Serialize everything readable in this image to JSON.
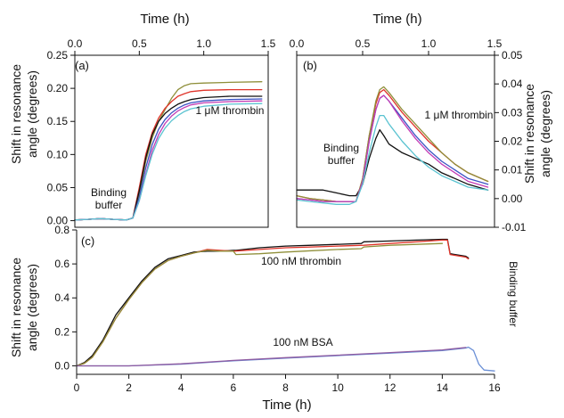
{
  "chart_data": [
    {
      "panel": "(a)",
      "type": "line",
      "xlabel": "Time (h)",
      "ylabel": "Shift in resonance angle (degrees)",
      "xlim": [
        0,
        1.5
      ],
      "ylim": [
        -0.01,
        0.25
      ],
      "xticks": [
        "0.0",
        "0.5",
        "1.0",
        "1.5"
      ],
      "yticks": [
        "0.00",
        "0.05",
        "0.10",
        "0.15",
        "0.20",
        "0.25"
      ],
      "x_axis_position": "top",
      "y_axis_position": "left",
      "grid": false,
      "annotations": [
        {
          "text": "Binding buffer",
          "x": 0.14,
          "y": 0.018
        },
        {
          "text": "1 μM thrombin",
          "x": 1.08,
          "y": 0.138
        }
      ],
      "series": [
        {
          "color": "#8f8f3a",
          "x": [
            0,
            0.1,
            0.2,
            0.3,
            0.4,
            0.45,
            0.5,
            0.55,
            0.6,
            0.65,
            0.7,
            0.75,
            0.8,
            0.85,
            0.9,
            1.0,
            1.2,
            1.45
          ],
          "y": [
            0.001,
            0.002,
            0.003,
            0.002,
            0.001,
            0.004,
            0.04,
            0.09,
            0.125,
            0.15,
            0.168,
            0.185,
            0.198,
            0.204,
            0.207,
            0.208,
            0.209,
            0.21
          ]
        },
        {
          "color": "#e0342a",
          "x": [
            0,
            0.1,
            0.2,
            0.3,
            0.4,
            0.45,
            0.5,
            0.55,
            0.6,
            0.65,
            0.7,
            0.75,
            0.8,
            0.85,
            0.9,
            1.0,
            1.2,
            1.45
          ],
          "y": [
            0.001,
            0.002,
            0.003,
            0.002,
            0.001,
            0.004,
            0.05,
            0.1,
            0.133,
            0.155,
            0.17,
            0.18,
            0.188,
            0.192,
            0.195,
            0.197,
            0.198,
            0.198
          ]
        },
        {
          "color": "#111111",
          "x": [
            0,
            0.1,
            0.2,
            0.3,
            0.4,
            0.45,
            0.5,
            0.55,
            0.6,
            0.65,
            0.7,
            0.75,
            0.8,
            0.85,
            0.9,
            1.0,
            1.2,
            1.45
          ],
          "y": [
            0.001,
            0.002,
            0.003,
            0.002,
            0.001,
            0.004,
            0.045,
            0.095,
            0.13,
            0.15,
            0.162,
            0.17,
            0.176,
            0.18,
            0.183,
            0.186,
            0.188,
            0.188
          ]
        },
        {
          "color": "#3b52c4",
          "x": [
            0,
            0.1,
            0.2,
            0.3,
            0.4,
            0.45,
            0.5,
            0.55,
            0.6,
            0.65,
            0.7,
            0.75,
            0.8,
            0.85,
            0.9,
            1.0,
            1.2,
            1.45
          ],
          "y": [
            0.001,
            0.002,
            0.003,
            0.002,
            0.001,
            0.004,
            0.035,
            0.08,
            0.115,
            0.138,
            0.153,
            0.163,
            0.17,
            0.175,
            0.178,
            0.181,
            0.183,
            0.184
          ]
        },
        {
          "color": "#c23bb5",
          "x": [
            0,
            0.1,
            0.2,
            0.3,
            0.4,
            0.45,
            0.5,
            0.55,
            0.6,
            0.65,
            0.7,
            0.75,
            0.8,
            0.85,
            0.9,
            1.0,
            1.2,
            1.45
          ],
          "y": [
            0.001,
            0.002,
            0.003,
            0.002,
            0.001,
            0.004,
            0.03,
            0.07,
            0.106,
            0.13,
            0.147,
            0.158,
            0.166,
            0.171,
            0.175,
            0.178,
            0.18,
            0.181
          ]
        },
        {
          "color": "#5bc3d1",
          "x": [
            0,
            0.1,
            0.2,
            0.3,
            0.4,
            0.45,
            0.5,
            0.55,
            0.6,
            0.65,
            0.7,
            0.75,
            0.8,
            0.85,
            0.9,
            1.0,
            1.2,
            1.45
          ],
          "y": [
            0.001,
            0.002,
            0.003,
            0.002,
            0.001,
            0.004,
            0.03,
            0.068,
            0.1,
            0.124,
            0.14,
            0.151,
            0.159,
            0.165,
            0.169,
            0.173,
            0.176,
            0.177
          ]
        }
      ]
    },
    {
      "panel": "(b)",
      "type": "line",
      "xlabel": "Time (h)",
      "ylabel": "Shift in resonance angle (degrees)",
      "xlim": [
        0,
        1.5
      ],
      "ylim": [
        -0.01,
        0.05
      ],
      "xticks": [
        "0.0",
        "0.5",
        "1.0",
        "1.5"
      ],
      "yticks": [
        "-0.01",
        "0.00",
        "0.01",
        "0.02",
        "0.03",
        "0.04",
        "0.05"
      ],
      "x_axis_position": "top",
      "y_axis_position": "right",
      "grid": false,
      "annotations": [
        {
          "text": "Binding buffer",
          "x": 0.17,
          "y": 0.011
        },
        {
          "text": "1 μM thrombin",
          "x": 1.17,
          "y": 0.027
        }
      ],
      "series": [
        {
          "color": "#111111",
          "x": [
            0,
            0.1,
            0.2,
            0.3,
            0.4,
            0.45,
            0.5,
            0.55,
            0.6,
            0.63,
            0.66,
            0.7,
            0.8,
            0.9,
            1.0,
            1.1,
            1.2,
            1.3,
            1.45
          ],
          "y": [
            0.003,
            0.003,
            0.003,
            0.002,
            0.001,
            0.001,
            0.005,
            0.014,
            0.021,
            0.024,
            0.022,
            0.019,
            0.016,
            0.014,
            0.012,
            0.009,
            0.007,
            0.005,
            0.003
          ]
        },
        {
          "color": "#e0342a",
          "x": [
            0,
            0.1,
            0.2,
            0.3,
            0.4,
            0.45,
            0.5,
            0.55,
            0.6,
            0.63,
            0.66,
            0.7,
            0.8,
            0.9,
            1.0,
            1.1,
            1.2,
            1.3,
            1.45
          ],
          "y": [
            0.001,
            0.0,
            -0.0005,
            -0.001,
            -0.001,
            -0.001,
            0.007,
            0.022,
            0.033,
            0.037,
            0.038,
            0.036,
            0.03,
            0.025,
            0.02,
            0.016,
            0.012,
            0.009,
            0.006
          ]
        },
        {
          "color": "#8f8f3a",
          "x": [
            0,
            0.1,
            0.2,
            0.3,
            0.4,
            0.45,
            0.5,
            0.55,
            0.6,
            0.63,
            0.66,
            0.7,
            0.8,
            0.9,
            1.0,
            1.1,
            1.2,
            1.3,
            1.45
          ],
          "y": [
            0.001,
            0.0,
            -0.0005,
            -0.001,
            -0.001,
            -0.001,
            0.007,
            0.022,
            0.034,
            0.038,
            0.039,
            0.037,
            0.031,
            0.026,
            0.021,
            0.016,
            0.012,
            0.009,
            0.006
          ]
        },
        {
          "color": "#3b52c4",
          "x": [
            0,
            0.1,
            0.2,
            0.3,
            0.4,
            0.45,
            0.5,
            0.55,
            0.6,
            0.63,
            0.66,
            0.7,
            0.8,
            0.9,
            1.0,
            1.1,
            1.2,
            1.3,
            1.45
          ],
          "y": [
            0.0,
            -0.0005,
            -0.001,
            -0.001,
            -0.001,
            -0.001,
            0.006,
            0.02,
            0.031,
            0.035,
            0.036,
            0.034,
            0.028,
            0.022,
            0.017,
            0.013,
            0.01,
            0.007,
            0.005
          ]
        },
        {
          "color": "#c23bb5",
          "x": [
            0,
            0.1,
            0.2,
            0.3,
            0.4,
            0.45,
            0.5,
            0.55,
            0.6,
            0.63,
            0.66,
            0.7,
            0.8,
            0.9,
            1.0,
            1.1,
            1.2,
            1.3,
            1.45
          ],
          "y": [
            0.0,
            -0.0005,
            -0.001,
            -0.001,
            -0.001,
            -0.001,
            0.006,
            0.02,
            0.031,
            0.035,
            0.036,
            0.034,
            0.027,
            0.021,
            0.016,
            0.012,
            0.009,
            0.006,
            0.004
          ]
        },
        {
          "color": "#5bc3d1",
          "x": [
            0,
            0.1,
            0.2,
            0.3,
            0.4,
            0.45,
            0.5,
            0.55,
            0.6,
            0.63,
            0.66,
            0.7,
            0.8,
            0.9,
            1.0,
            1.1,
            1.2,
            1.3,
            1.45
          ],
          "y": [
            -0.0005,
            -0.001,
            -0.0015,
            -0.002,
            -0.002,
            -0.001,
            0.005,
            0.016,
            0.025,
            0.029,
            0.029,
            0.026,
            0.02,
            0.015,
            0.011,
            0.008,
            0.006,
            0.004,
            0.003
          ]
        }
      ]
    },
    {
      "panel": "(c)",
      "type": "line",
      "xlabel": "Time (h)",
      "ylabel": "Shift in resonance angle (degrees)",
      "xlim": [
        0,
        16
      ],
      "ylim": [
        -0.05,
        0.8
      ],
      "xticks": [
        "0",
        "2",
        "4",
        "6",
        "8",
        "10",
        "12",
        "14",
        "16"
      ],
      "yticks": [
        "0.0",
        "0.2",
        "0.4",
        "0.6",
        "0.8"
      ],
      "x_axis_position": "bottom",
      "y_axis_position": "left",
      "grid": false,
      "annotations": [
        {
          "text": "100 nM thrombin",
          "x": 8.4,
          "y": 0.62
        },
        {
          "text": "100 nM BSA",
          "x": 8.5,
          "y": 0.145
        },
        {
          "text": "Binding buffer",
          "x": 16.45,
          "y": 0.42,
          "rotation": 90
        }
      ],
      "series": [
        {
          "color": "#111111",
          "x": [
            0,
            0.3,
            0.6,
            1.0,
            1.5,
            2.0,
            2.5,
            3.0,
            3.5,
            4.0,
            4.5,
            5.0,
            5.5,
            6.0,
            6.1,
            7.0,
            8.0,
            9.0,
            10.0,
            10.9,
            11.0,
            12.0,
            13.0,
            14.0,
            14.2,
            14.3,
            14.9,
            15.0
          ],
          "y": [
            0.0,
            0.02,
            0.06,
            0.15,
            0.3,
            0.4,
            0.5,
            0.58,
            0.63,
            0.65,
            0.67,
            0.675,
            0.675,
            0.68,
            0.68,
            0.695,
            0.705,
            0.71,
            0.715,
            0.72,
            0.73,
            0.735,
            0.74,
            0.745,
            0.745,
            0.66,
            0.645,
            0.635
          ]
        },
        {
          "color": "#e0342a",
          "x": [
            0,
            0.3,
            0.6,
            1.0,
            1.5,
            2.0,
            2.5,
            3.0,
            3.5,
            4.0,
            4.5,
            5.0,
            5.5,
            6.0,
            7.0,
            8.0,
            9.0,
            10.0,
            11.0,
            12.0,
            13.0,
            14.0,
            14.2,
            14.3,
            14.9,
            15.0
          ],
          "y": [
            0.0,
            0.015,
            0.05,
            0.14,
            0.28,
            0.39,
            0.49,
            0.57,
            0.62,
            0.645,
            0.665,
            0.685,
            0.68,
            0.675,
            0.685,
            0.695,
            0.7,
            0.705,
            0.71,
            0.72,
            0.73,
            0.74,
            0.74,
            0.655,
            0.64,
            0.63
          ]
        },
        {
          "color": "#8f8f3a",
          "x": [
            0,
            0.3,
            0.6,
            1.0,
            1.5,
            2.0,
            2.5,
            3.0,
            3.5,
            4.0,
            4.5,
            5.0,
            5.5,
            6.0,
            6.1,
            7.0,
            8.0,
            9.0,
            10.0,
            10.9,
            11.0,
            12.0,
            13.0,
            14.0
          ],
          "y": [
            0.0,
            0.015,
            0.05,
            0.14,
            0.28,
            0.39,
            0.49,
            0.57,
            0.62,
            0.645,
            0.665,
            0.68,
            0.675,
            0.675,
            0.655,
            0.66,
            0.67,
            0.678,
            0.685,
            0.69,
            0.7,
            0.71,
            0.715,
            0.72
          ]
        },
        {
          "color": "#6a8fd6",
          "x": [
            0,
            2,
            4,
            6,
            8,
            10,
            12,
            14,
            14.9,
            15.0,
            15.2,
            15.4,
            15.6,
            16.0
          ],
          "y": [
            0.0,
            0.0,
            0.01,
            0.03,
            0.045,
            0.06,
            0.075,
            0.09,
            0.105,
            0.11,
            0.09,
            0.01,
            -0.025,
            -0.03
          ]
        },
        {
          "color": "#8e5aa0",
          "x": [
            0,
            2,
            4,
            6,
            8,
            10,
            12,
            14,
            14.9
          ],
          "y": [
            0.0,
            0.0,
            0.012,
            0.032,
            0.048,
            0.063,
            0.078,
            0.094,
            0.108
          ]
        }
      ]
    }
  ]
}
